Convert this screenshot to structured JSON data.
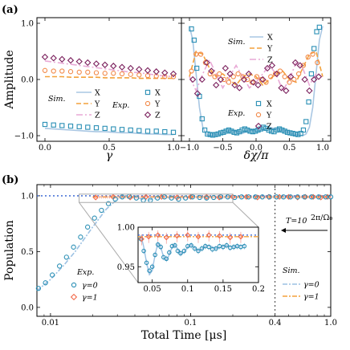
{
  "panel_a_label": "(a)",
  "panel_b_label": "(b)",
  "chart_data": [
    {
      "type": "scatter",
      "panel": "(a) left",
      "ylabel": "Amplitude",
      "xlabel": "γ",
      "xlim": [
        0,
        1.0
      ],
      "ylim": [
        -1.1,
        1.1
      ],
      "xticks": [
        "0.0",
        "0.5",
        "1.0"
      ],
      "yticks": [
        "1.0",
        "0.0",
        "−1.0"
      ],
      "legend_sim": "Sim.",
      "legend_exp": "Exp.",
      "x": [
        0.0,
        0.067,
        0.133,
        0.2,
        0.267,
        0.333,
        0.4,
        0.467,
        0.533,
        0.6,
        0.667,
        0.733,
        0.8,
        0.867,
        0.933,
        1.0
      ],
      "series": [
        {
          "name": "X",
          "kind": "sim",
          "color": "#a9c7e3",
          "dash": "",
          "y": [
            -0.87,
            -0.88,
            -0.89,
            -0.9,
            -0.91,
            -0.92,
            -0.93,
            -0.93,
            -0.94,
            -0.95,
            -0.95,
            -0.96,
            -0.97,
            -0.97,
            -0.98,
            -0.98
          ]
        },
        {
          "name": "Y",
          "kind": "sim",
          "color": "#f3a13b",
          "dash": "6,3",
          "y": [
            0.05,
            0.05,
            0.05,
            0.04,
            0.04,
            0.04,
            0.04,
            0.03,
            0.03,
            0.03,
            0.03,
            0.02,
            0.02,
            0.02,
            0.02,
            0.02
          ]
        },
        {
          "name": "Z",
          "kind": "sim",
          "color": "#e9a9d6",
          "dash": "8,3,2,3",
          "y": [
            0.33,
            0.31,
            0.29,
            0.27,
            0.25,
            0.23,
            0.21,
            0.19,
            0.17,
            0.15,
            0.13,
            0.12,
            0.1,
            0.08,
            0.06,
            0.05
          ]
        },
        {
          "name": "X",
          "kind": "exp",
          "color": "#2a8fb5",
          "marker": "square",
          "y": [
            -0.8,
            -0.81,
            -0.82,
            -0.83,
            -0.84,
            -0.85,
            -0.86,
            -0.87,
            -0.88,
            -0.89,
            -0.9,
            -0.91,
            -0.92,
            -0.92,
            -0.93,
            -0.94
          ]
        },
        {
          "name": "Y",
          "kind": "exp",
          "color": "#f28a4a",
          "marker": "circle",
          "y": [
            0.16,
            0.15,
            0.15,
            0.14,
            0.13,
            0.13,
            0.12,
            0.11,
            0.11,
            0.1,
            0.09,
            0.08,
            0.07,
            0.06,
            0.05,
            0.05
          ]
        },
        {
          "name": "Z",
          "kind": "exp",
          "color": "#7a1f5c",
          "marker": "diamond",
          "y": [
            0.4,
            0.38,
            0.36,
            0.34,
            0.32,
            0.3,
            0.28,
            0.26,
            0.24,
            0.22,
            0.2,
            0.18,
            0.16,
            0.14,
            0.12,
            0.1
          ]
        }
      ]
    },
    {
      "type": "scatter",
      "panel": "(a) right",
      "xlabel": "δχ/π",
      "xlim": [
        -1.0,
        1.0
      ],
      "ylim": [
        -1.1,
        1.1
      ],
      "xticks": [
        "−1.0",
        "−0.5",
        "0.0",
        "0.5",
        "1.0"
      ],
      "legend_sim": "Sim.",
      "legend_exp": "Exp.",
      "series": [
        {
          "name": "X",
          "kind": "sim",
          "color": "#a9c7e3",
          "dash": "",
          "x": [
            -1.0,
            -0.95,
            -0.9,
            -0.85,
            -0.8,
            -0.75,
            -0.7,
            -0.6,
            -0.5,
            -0.4,
            -0.3,
            -0.2,
            -0.1,
            0.0,
            0.1,
            0.2,
            0.3,
            0.4,
            0.5,
            0.6,
            0.7,
            0.75,
            0.8,
            0.85,
            0.9,
            0.95,
            1.0
          ],
          "y": [
            0.95,
            0.7,
            0.1,
            -0.5,
            -0.85,
            -0.97,
            -1.0,
            -0.98,
            -0.95,
            -0.9,
            -0.93,
            -0.96,
            -0.9,
            -0.92,
            -0.9,
            -0.85,
            -0.88,
            -0.9,
            -0.95,
            -0.98,
            -1.0,
            -0.97,
            -0.85,
            -0.5,
            0.1,
            0.7,
            0.95
          ]
        },
        {
          "name": "Y",
          "kind": "sim",
          "color": "#f3a13b",
          "dash": "6,3",
          "x": [
            -1.0,
            -0.9,
            -0.8,
            -0.7,
            -0.6,
            -0.5,
            -0.4,
            -0.3,
            -0.2,
            -0.1,
            0.0,
            0.1,
            0.2,
            0.3,
            0.4,
            0.5,
            0.6,
            0.7,
            0.8,
            0.9,
            1.0
          ],
          "y": [
            0.05,
            0.5,
            0.45,
            0.2,
            0.05,
            0.1,
            0.0,
            -0.1,
            0.05,
            0.1,
            0.05,
            -0.1,
            0.0,
            0.1,
            0.15,
            0.0,
            -0.05,
            0.2,
            0.45,
            0.5,
            0.05
          ]
        },
        {
          "name": "Z",
          "kind": "sim",
          "color": "#e9a9d6",
          "dash": "8,3,2,3",
          "x": [
            -1.0,
            -0.9,
            -0.8,
            -0.7,
            -0.6,
            -0.5,
            -0.4,
            -0.3,
            -0.2,
            -0.1,
            0.0,
            0.1,
            0.2,
            0.3,
            0.4,
            0.5,
            0.6,
            0.7,
            0.8,
            0.9,
            1.0
          ],
          "y": [
            0.05,
            -0.2,
            0.1,
            0.35,
            0.1,
            -0.15,
            0.05,
            0.25,
            0.05,
            -0.15,
            -0.05,
            0.1,
            0.25,
            0.1,
            -0.2,
            0.0,
            0.3,
            0.2,
            -0.1,
            0.1,
            0.05
          ]
        },
        {
          "name": "X",
          "kind": "exp",
          "color": "#2a8fb5",
          "marker": "square",
          "x": [
            -0.97,
            -0.93,
            -0.89,
            -0.85,
            -0.81,
            -0.77,
            -0.73,
            -0.69,
            -0.65,
            -0.61,
            -0.57,
            -0.53,
            -0.49,
            -0.45,
            -0.41,
            -0.37,
            -0.33,
            -0.29,
            -0.25,
            -0.21,
            -0.17,
            -0.13,
            -0.09,
            -0.05,
            -0.01,
            0.03,
            0.07,
            0.11,
            0.15,
            0.19,
            0.23,
            0.27,
            0.31,
            0.35,
            0.39,
            0.43,
            0.47,
            0.51,
            0.55,
            0.59,
            0.63,
            0.67,
            0.71,
            0.75,
            0.79,
            0.83,
            0.87,
            0.91,
            0.95
          ],
          "y": [
            0.9,
            0.7,
            0.2,
            -0.3,
            -0.7,
            -0.9,
            -0.97,
            -0.98,
            -0.99,
            -0.98,
            -0.97,
            -0.95,
            -0.94,
            -0.92,
            -0.9,
            -0.92,
            -0.94,
            -0.95,
            -0.93,
            -0.9,
            -0.88,
            -0.9,
            -0.92,
            -0.93,
            -0.92,
            -0.9,
            -0.88,
            -0.85,
            -0.87,
            -0.9,
            -0.92,
            -0.93,
            -0.9,
            -0.88,
            -0.9,
            -0.92,
            -0.94,
            -0.95,
            -0.96,
            -0.97,
            -0.98,
            -0.96,
            -0.9,
            -0.75,
            -0.4,
            0.1,
            0.55,
            0.85,
            0.93
          ]
        },
        {
          "name": "Y",
          "kind": "exp",
          "color": "#f28a4a",
          "marker": "circle",
          "x": [
            -0.97,
            -0.9,
            -0.83,
            -0.76,
            -0.69,
            -0.62,
            -0.55,
            -0.48,
            -0.41,
            -0.34,
            -0.27,
            -0.2,
            -0.13,
            -0.06,
            0.01,
            0.08,
            0.15,
            0.22,
            0.29,
            0.36,
            0.43,
            0.5,
            0.57,
            0.64,
            0.71,
            0.78,
            0.85,
            0.92
          ],
          "y": [
            0.15,
            0.45,
            0.45,
            0.3,
            0.1,
            0.05,
            0.1,
            0.0,
            -0.05,
            0.05,
            0.1,
            0.05,
            0.0,
            -0.05,
            0.05,
            0.0,
            -0.05,
            0.05,
            0.1,
            0.15,
            0.05,
            -0.05,
            0.0,
            0.1,
            0.25,
            0.4,
            0.45,
            0.3
          ]
        },
        {
          "name": "Z",
          "kind": "exp",
          "color": "#7a1f5c",
          "marker": "diamond",
          "x": [
            -0.95,
            -0.88,
            -0.81,
            -0.74,
            -0.67,
            -0.6,
            -0.53,
            -0.46,
            -0.39,
            -0.32,
            -0.25,
            -0.18,
            -0.11,
            -0.04,
            0.03,
            0.1,
            0.17,
            0.24,
            0.31,
            0.38,
            0.45,
            0.52,
            0.59,
            0.66,
            0.73,
            0.8,
            0.87,
            0.94
          ],
          "y": [
            0.0,
            -0.25,
            0.0,
            0.3,
            0.15,
            -0.1,
            0.0,
            0.2,
            0.1,
            -0.1,
            -0.15,
            0.0,
            0.1,
            -0.05,
            -0.1,
            0.0,
            0.2,
            0.25,
            0.1,
            -0.15,
            -0.2,
            0.05,
            0.3,
            0.25,
            0.0,
            -0.2,
            0.0,
            0.05
          ]
        }
      ]
    },
    {
      "type": "scatter",
      "panel": "(b)",
      "xlabel": "Total Time [μs]",
      "ylabel": "Population",
      "xscale": "log",
      "xlim": [
        0.008,
        1.0
      ],
      "ylim": [
        -0.08,
        1.1
      ],
      "xticks": [
        "0.01",
        "0.1",
        "0.4",
        "1.0"
      ],
      "yticks": [
        "1.0",
        "0.5",
        "0.0"
      ],
      "threshold_label": "T=10",
      "threshold_fraction": "2π/Ω₀",
      "threshold_x": 0.4,
      "reference_line_y": 1.0,
      "legend_sim": "Sim.",
      "legend_exp": "Exp.",
      "series": [
        {
          "name": "γ=0",
          "kind": "exp",
          "color": "#2a8fb5",
          "marker": "circle",
          "x": [
            0.0082,
            0.0092,
            0.0103,
            0.0116,
            0.013,
            0.0146,
            0.0164,
            0.0184,
            0.0206,
            0.0231,
            0.0259,
            0.029,
            0.0325,
            0.0365,
            0.041,
            0.046,
            0.0516,
            0.058,
            0.065,
            0.073,
            0.082,
            0.092,
            0.103,
            0.116,
            0.13,
            0.146,
            0.164,
            0.184,
            0.206,
            0.231,
            0.259,
            0.29,
            0.325,
            0.365,
            0.41,
            0.46,
            0.516,
            0.58,
            0.65,
            0.73,
            0.82,
            0.92,
            1.0
          ],
          "y": [
            0.17,
            0.22,
            0.29,
            0.37,
            0.45,
            0.54,
            0.63,
            0.72,
            0.8,
            0.87,
            0.93,
            0.97,
            0.99,
            0.995,
            0.98,
            0.96,
            0.96,
            0.98,
            0.99,
            0.98,
            0.97,
            0.98,
            0.99,
            0.985,
            0.98,
            0.985,
            0.99,
            0.99,
            0.985,
            0.99,
            0.99,
            0.99,
            0.99,
            0.99,
            0.99,
            0.99,
            0.99,
            0.99,
            0.99,
            0.99,
            0.99,
            0.99,
            0.99
          ]
        },
        {
          "name": "γ=1",
          "kind": "exp",
          "color": "#f26a4a",
          "marker": "diamond",
          "x": [
            0.021,
            0.028,
            0.037,
            0.048,
            0.062,
            0.08,
            0.1,
            0.13,
            0.16,
            0.2,
            0.25,
            0.3,
            0.36,
            0.43,
            0.5,
            0.58,
            0.66,
            0.75,
            0.85,
            0.95
          ],
          "y": [
            0.985,
            0.99,
            0.985,
            0.99,
            0.99,
            0.985,
            0.99,
            0.99,
            0.985,
            0.99,
            0.99,
            0.985,
            0.99,
            0.99,
            0.99,
            0.985,
            0.99,
            0.99,
            0.985,
            0.99
          ]
        },
        {
          "name": "γ=0",
          "kind": "sim",
          "color": "#9cc1e3",
          "dash": "6,2,2,2",
          "x": [
            0.008,
            0.01,
            0.0125,
            0.015,
            0.02,
            0.025,
            0.03,
            0.035,
            0.04,
            0.045,
            0.05,
            0.06,
            0.07,
            0.08,
            0.1,
            0.15,
            0.2,
            0.3,
            0.5,
            1.0
          ],
          "y": [
            0.15,
            0.25,
            0.38,
            0.5,
            0.72,
            0.88,
            0.97,
            1.0,
            0.99,
            0.97,
            0.96,
            0.99,
            0.985,
            0.98,
            0.99,
            0.99,
            0.99,
            0.99,
            0.99,
            0.99
          ]
        },
        {
          "name": "γ=1",
          "kind": "sim",
          "color": "#f3a13b",
          "dash": "6,2,2,2",
          "x": [
            0.02,
            0.05,
            0.1,
            0.2,
            0.5,
            1.0
          ],
          "y": [
            0.99,
            0.99,
            0.99,
            0.99,
            0.99,
            0.99
          ]
        }
      ],
      "inset": {
        "xlim": [
          0.03,
          0.2
        ],
        "ylim": [
          0.93,
          1.0
        ],
        "xticks": [
          "0.05",
          "0.1",
          "0.15",
          "0.2"
        ],
        "yticks": [
          "1.00",
          "0.95"
        ],
        "x": [
          0.034,
          0.038,
          0.042,
          0.046,
          0.05,
          0.054,
          0.058,
          0.062,
          0.066,
          0.07,
          0.074,
          0.078,
          0.082,
          0.086,
          0.09,
          0.095,
          0.1,
          0.105,
          0.11,
          0.115,
          0.12,
          0.125,
          0.13,
          0.135,
          0.14,
          0.145,
          0.15,
          0.155,
          0.16,
          0.165,
          0.17,
          0.175,
          0.18
        ],
        "y_sim": [
          0.99,
          0.975,
          0.955,
          0.94,
          0.945,
          0.965,
          0.98,
          0.975,
          0.962,
          0.958,
          0.965,
          0.975,
          0.978,
          0.972,
          0.966,
          0.968,
          0.975,
          0.978,
          0.974,
          0.97,
          0.972,
          0.976,
          0.977,
          0.975,
          0.973,
          0.974,
          0.976,
          0.977,
          0.976,
          0.975,
          0.976,
          0.977,
          0.977
        ],
        "y_exp0": [
          0.985,
          0.97,
          0.955,
          0.945,
          0.95,
          0.965,
          0.978,
          0.975,
          0.962,
          0.96,
          0.968,
          0.976,
          0.977,
          0.97,
          0.967,
          0.97,
          0.976,
          0.977,
          0.973,
          0.97,
          0.973,
          0.976,
          0.975,
          0.972,
          0.973,
          0.976,
          0.975,
          0.977,
          0.974,
          0.975,
          0.976,
          0.975,
          0.976
        ],
        "x_exp1": [
          0.035,
          0.045,
          0.058,
          0.07,
          0.085,
          0.1,
          0.115,
          0.13,
          0.145,
          0.16,
          0.175
        ],
        "y_exp1": [
          0.985,
          0.988,
          0.99,
          0.987,
          0.989,
          0.99,
          0.988,
          0.99,
          0.989,
          0.987,
          0.988
        ]
      }
    }
  ]
}
